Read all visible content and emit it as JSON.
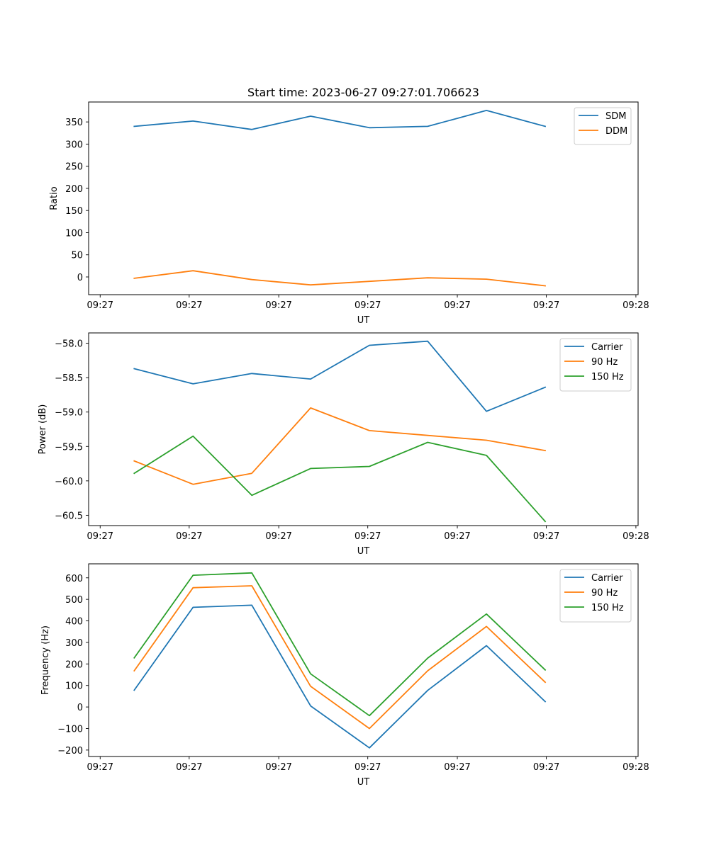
{
  "chart_data": [
    {
      "type": "line",
      "title": "Start time: 2023-06-27 09:27:01.706623",
      "xlabel": "UT",
      "ylabel": "Ratio",
      "xlim": [
        0,
        1
      ],
      "ylim": [
        -40,
        395
      ],
      "x": [
        0.083,
        0.19,
        0.297,
        0.404,
        0.511,
        0.617,
        0.724,
        0.831
      ],
      "xticks": [
        0.021,
        0.183,
        0.346,
        0.508,
        0.671,
        0.833,
        0.996
      ],
      "xtick_labels": [
        "09:27",
        "09:27",
        "09:27",
        "09:27",
        "09:27",
        "09:27",
        "09:28"
      ],
      "yticks": [
        0,
        50,
        100,
        150,
        200,
        250,
        300,
        350
      ],
      "ytick_labels": [
        "0",
        "50",
        "100",
        "150",
        "200",
        "250",
        "300",
        "350"
      ],
      "legend": "top-right",
      "series": [
        {
          "name": "SDM",
          "color": "#1f77b4",
          "values": [
            340,
            352,
            333,
            363,
            337,
            340,
            376,
            340
          ]
        },
        {
          "name": "DDM",
          "color": "#ff7f0e",
          "values": [
            -3,
            14,
            -6,
            -18,
            -10,
            -2,
            -5,
            -20
          ]
        }
      ]
    },
    {
      "type": "line",
      "title": "",
      "xlabel": "UT",
      "ylabel": "Power (dB)",
      "xlim": [
        0,
        1
      ],
      "ylim": [
        -60.65,
        -57.85
      ],
      "x": [
        0.083,
        0.19,
        0.297,
        0.404,
        0.511,
        0.617,
        0.724,
        0.831
      ],
      "xticks": [
        0.021,
        0.183,
        0.346,
        0.508,
        0.671,
        0.833,
        0.996
      ],
      "xtick_labels": [
        "09:27",
        "09:27",
        "09:27",
        "09:27",
        "09:27",
        "09:27",
        "09:28"
      ],
      "yticks": [
        -60.5,
        -60.0,
        -59.5,
        -59.0,
        -58.5,
        -58.0
      ],
      "ytick_labels": [
        "−60.5",
        "−60.0",
        "−59.5",
        "−59.0",
        "−58.5",
        "−58.0"
      ],
      "legend": "top-right",
      "series": [
        {
          "name": "Carrier",
          "color": "#1f77b4",
          "values": [
            -58.37,
            -58.59,
            -58.44,
            -58.52,
            -58.03,
            -57.97,
            -58.99,
            -58.64
          ]
        },
        {
          "name": "90 Hz",
          "color": "#ff7f0e",
          "values": [
            -59.71,
            -60.05,
            -59.89,
            -58.94,
            -59.27,
            -59.34,
            -59.41,
            -59.56
          ]
        },
        {
          "name": "150 Hz",
          "color": "#2ca02c",
          "values": [
            -59.89,
            -59.35,
            -60.21,
            -59.82,
            -59.79,
            -59.44,
            -59.63,
            -60.59
          ]
        }
      ]
    },
    {
      "type": "line",
      "title": "",
      "xlabel": "UT",
      "ylabel": "Frequency (Hz)",
      "xlim": [
        0,
        1
      ],
      "ylim": [
        -230,
        665
      ],
      "x": [
        0.083,
        0.19,
        0.297,
        0.404,
        0.511,
        0.617,
        0.724,
        0.831
      ],
      "xticks": [
        0.021,
        0.183,
        0.346,
        0.508,
        0.671,
        0.833,
        0.996
      ],
      "xtick_labels": [
        "09:27",
        "09:27",
        "09:27",
        "09:27",
        "09:27",
        "09:27",
        "09:28"
      ],
      "yticks": [
        -200,
        -100,
        0,
        100,
        200,
        300,
        400,
        500,
        600
      ],
      "ytick_labels": [
        "−200",
        "−100",
        "0",
        "100",
        "200",
        "300",
        "400",
        "500",
        "600"
      ],
      "legend": "top-right",
      "series": [
        {
          "name": "Carrier",
          "color": "#1f77b4",
          "values": [
            78,
            463,
            473,
            5,
            -190,
            77,
            285,
            25
          ]
        },
        {
          "name": "90 Hz",
          "color": "#ff7f0e",
          "values": [
            168,
            554,
            563,
            96,
            -100,
            168,
            374,
            115
          ]
        },
        {
          "name": "150 Hz",
          "color": "#2ca02c",
          "values": [
            228,
            612,
            623,
            154,
            -40,
            227,
            432,
            172
          ]
        }
      ]
    }
  ]
}
